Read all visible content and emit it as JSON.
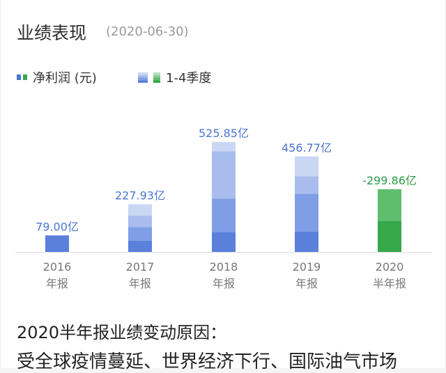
{
  "header": {
    "title": "业绩表现",
    "date": "(2020-06-30)"
  },
  "legend": {
    "net_profit": "净利润 (元)",
    "quarters": "1-4季度"
  },
  "colors": {
    "blue_q": [
      "#5a80dc",
      "#7f9ee6",
      "#a8bdee",
      "#c9d6f4"
    ],
    "green_q": [
      "#37a74b",
      "#5fbd6e"
    ],
    "blue_label": "#4a76d2",
    "green_label": "#2e9d47"
  },
  "chart_data": {
    "type": "bar",
    "categories": [
      "2016年报",
      "2017年报",
      "2018年报",
      "2019年报",
      "2020半年报"
    ],
    "category_lines": [
      [
        "2016",
        "年报"
      ],
      [
        "2017",
        "年报"
      ],
      [
        "2018",
        "年报"
      ],
      [
        "2019",
        "年报"
      ],
      [
        "2020",
        "半年报"
      ]
    ],
    "values": [
      79.0,
      227.93,
      525.85,
      456.77,
      -299.86
    ],
    "value_labels": [
      "79.00亿",
      "227.93亿",
      "525.85亿",
      "456.77亿",
      "-299.86亿"
    ],
    "unit": "亿",
    "quarter_heights": [
      [
        79
      ],
      [
        52,
        62,
        52,
        53
      ],
      [
        97,
        162,
        229,
        45
      ],
      [
        91,
        169,
        77,
        89
      ],
      [
        149,
        151
      ]
    ]
  },
  "footer": {
    "reason_title": "2020半年报业绩变动原因：",
    "reason_text": "受全球疫情蔓延、世界经济下行、国际油气市场"
  }
}
